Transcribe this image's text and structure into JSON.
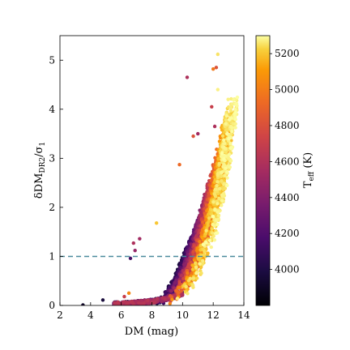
{
  "chart_data": {
    "type": "scatter",
    "title": "",
    "xlabel": "DM (mag)",
    "ylabel": {
      "main": "δDM",
      "sub": "DR2",
      "denom": "σ",
      "denom_sub": "1"
    },
    "xlim": [
      2,
      14
    ],
    "ylim": [
      0,
      5.5
    ],
    "xticks": [
      2,
      4,
      6,
      8,
      10,
      12,
      14
    ],
    "yticks": [
      0,
      1,
      2,
      3,
      4,
      5
    ],
    "reference_line": {
      "y": 1.0,
      "style": "dashed",
      "color": "#4a8a9c"
    },
    "colorbar": {
      "label_main": "T",
      "label_sub": "eff",
      "label_unit": "(K)",
      "range": [
        3800,
        5300
      ],
      "ticks": [
        4000,
        4200,
        4400,
        4600,
        4800,
        5000,
        5200
      ],
      "colormap": "inferno"
    },
    "trend_description": "Points follow curved band: ratio rises from ~0 at DM 4-6 to ~4.4 at DM 12.3; cooler stars (dark) at lower ratio for given DM, hotter stars (yellow) at higher DM.",
    "points_sample": [
      {
        "x": 3.5,
        "y": 0.01,
        "teff": 3900
      },
      {
        "x": 4.8,
        "y": 0.11,
        "teff": 3950
      },
      {
        "x": 6.5,
        "y": 0.25,
        "teff": 4900
      },
      {
        "x": 6.2,
        "y": 0.18,
        "teff": 4600
      },
      {
        "x": 6.8,
        "y": 1.27,
        "teff": 4500
      },
      {
        "x": 7.2,
        "y": 1.36,
        "teff": 4450
      },
      {
        "x": 6.6,
        "y": 0.96,
        "teff": 4100
      },
      {
        "x": 6.9,
        "y": 1.12,
        "teff": 4400
      },
      {
        "x": 8.3,
        "y": 1.68,
        "teff": 5100
      },
      {
        "x": 9.8,
        "y": 2.87,
        "teff": 4800
      },
      {
        "x": 10.3,
        "y": 4.65,
        "teff": 4500
      },
      {
        "x": 12.3,
        "y": 5.12,
        "teff": 5200
      },
      {
        "x": 12.0,
        "y": 4.82,
        "teff": 4850
      },
      {
        "x": 12.2,
        "y": 4.85,
        "teff": 4700
      },
      {
        "x": 12.3,
        "y": 4.4,
        "teff": 5250
      },
      {
        "x": 11.9,
        "y": 4.05,
        "teff": 4600
      },
      {
        "x": 12.1,
        "y": 3.65,
        "teff": 4500
      },
      {
        "x": 10.7,
        "y": 3.45,
        "teff": 4700
      },
      {
        "x": 11.0,
        "y": 3.5,
        "teff": 4450
      }
    ]
  }
}
